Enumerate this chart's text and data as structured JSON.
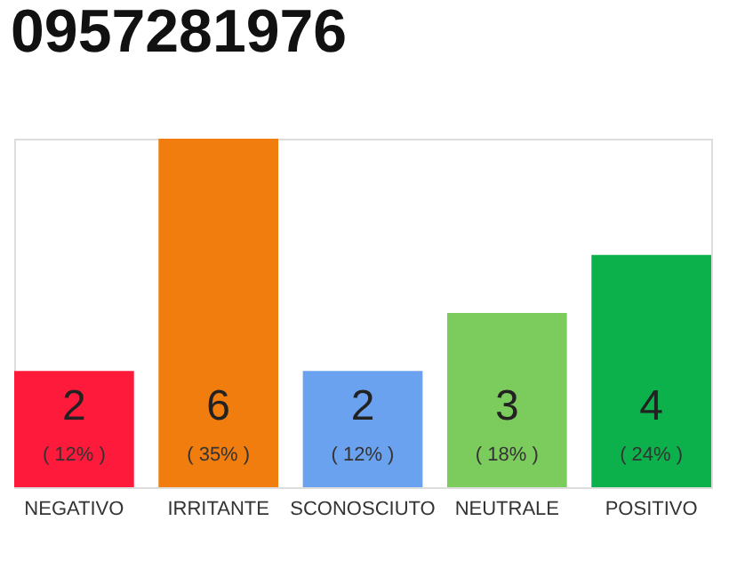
{
  "chart_data": {
    "type": "bar",
    "title": "0957281976",
    "categories": [
      "NEGATIVO",
      "IRRITANTE",
      "SCONOSCIUTO",
      "NEUTRALE",
      "POSITIVO"
    ],
    "values": [
      2,
      6,
      2,
      3,
      4
    ],
    "colors": [
      "#fe1a3b",
      "#f07d0d",
      "#6ba2f0",
      "#7ccb5d",
      "#0db14b"
    ],
    "data_labels": true,
    "annotations": [
      "( 12% )",
      "( 35% )",
      "( 12% )",
      "( 18% )",
      "( 24% )"
    ],
    "tick_labels": "x"
  }
}
